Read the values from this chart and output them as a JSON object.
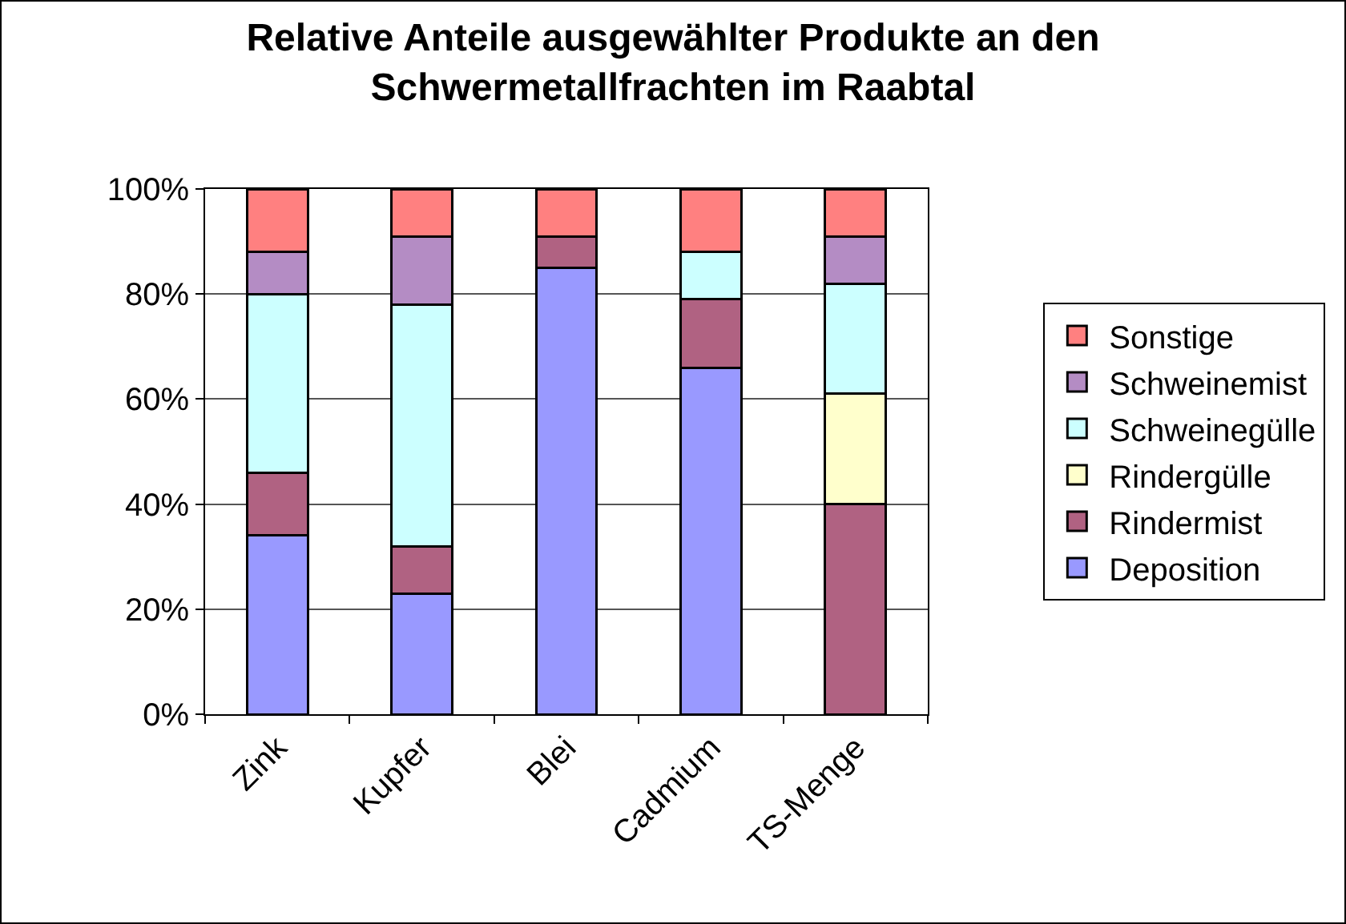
{
  "chart_data": {
    "type": "bar",
    "title": "Relative Anteile ausgewählter Produkte an den\nSchwermetallfrachten im Raabtal",
    "categories": [
      "Zink",
      "Kupfer",
      "Blei",
      "Cadmium",
      "TS-Menge"
    ],
    "stacked": true,
    "series": [
      {
        "name": "Deposition",
        "color": "#9999ff",
        "values": [
          34,
          23,
          85,
          66,
          null
        ]
      },
      {
        "name": "Rindermist",
        "color": "#b06282",
        "values": [
          12,
          9,
          6,
          13,
          40
        ]
      },
      {
        "name": "Rindergülle",
        "color": "#ffffcc",
        "values": [
          null,
          null,
          null,
          null,
          21
        ]
      },
      {
        "name": "Schweinegülle",
        "color": "#ccffff",
        "values": [
          34,
          46,
          null,
          9,
          21
        ]
      },
      {
        "name": "Schweinemist",
        "color": "#b48cc4",
        "values": [
          8,
          13,
          null,
          null,
          9
        ]
      },
      {
        "name": "Sonstige",
        "color": "#ff8080",
        "values": [
          12,
          9,
          9,
          12,
          9
        ]
      }
    ],
    "ylim": [
      0,
      100
    ],
    "yticks": [
      {
        "value": 0,
        "label": "0%"
      },
      {
        "value": 20,
        "label": "20%"
      },
      {
        "value": 40,
        "label": "40%"
      },
      {
        "value": 60,
        "label": "60%"
      },
      {
        "value": 80,
        "label": "80%"
      },
      {
        "value": 100,
        "label": "100%"
      }
    ],
    "grid": "y",
    "legend": "right"
  }
}
